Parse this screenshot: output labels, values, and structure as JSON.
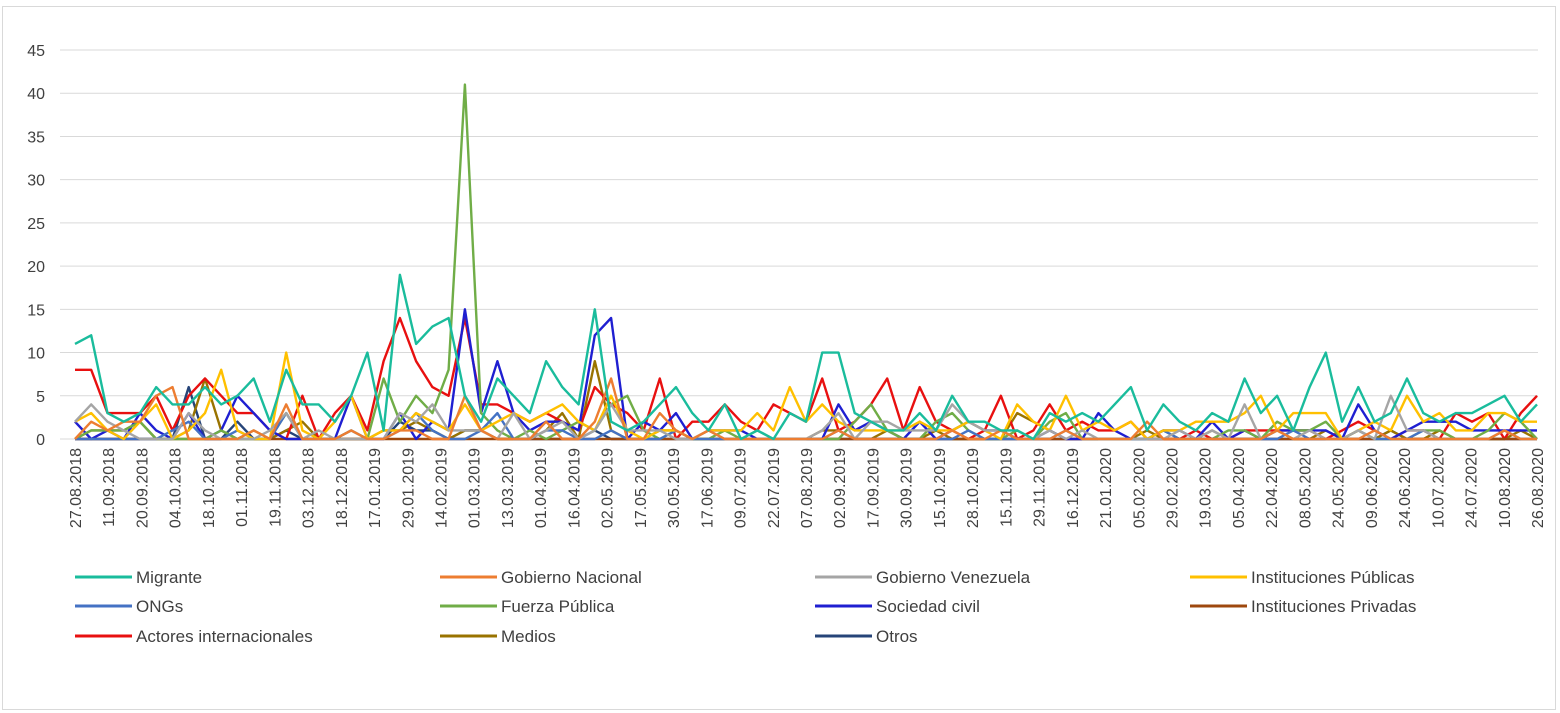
{
  "chart_data": {
    "type": "line",
    "title": "",
    "xlabel": "",
    "ylabel": "",
    "ylim": [
      0,
      45
    ],
    "yticks": [
      "0",
      "5",
      "10",
      "15",
      "20",
      "25",
      "30",
      "35",
      "40",
      "45"
    ],
    "grid": "horizontal",
    "legend_position": "bottom",
    "x_tick_labels": [
      "27.08.2018",
      "11.09.2018",
      "20.09.2018",
      "04.10.2018",
      "18.10.2018",
      "01.11.2018",
      "19.11.2018",
      "03.12.2018",
      "18.12.2018",
      "17.01.2019",
      "29.01.2019",
      "14.02.2019",
      "01.03.2019",
      "13.03.2019",
      "01.04.2019",
      "16.04.2019",
      "02.05.2019",
      "17.05.2019",
      "30.05.2019",
      "17.06.2019",
      "09.07.2019",
      "22.07.2019",
      "07.08.2019",
      "02.09.2019",
      "17.09.2019",
      "30.09.2019",
      "15.10.2019",
      "28.10.2019",
      "15.11.2019",
      "29.11.2019",
      "16.12.2019",
      "21.01.2020",
      "05.02.2020",
      "29.02.2020",
      "19.03.2020",
      "05.04.2020",
      "22.04.2020",
      "08.05.2020",
      "24.05.2020",
      "09.06.2020",
      "24.06.2020",
      "10.07.2020",
      "24.07.2020",
      "10.08.2020",
      "26.08.2020"
    ],
    "series": [
      {
        "name": "Migrante",
        "color": "#1ABC9C",
        "values": [
          11,
          12,
          3,
          2,
          3,
          6,
          4,
          4,
          6,
          4,
          5,
          7,
          2,
          8,
          4,
          4,
          2,
          5,
          10,
          1,
          19,
          11,
          13,
          14,
          5,
          2,
          7,
          5,
          3,
          9,
          6,
          4,
          15,
          2,
          1,
          2,
          4,
          6,
          3,
          1,
          4,
          0,
          1,
          0,
          3,
          2,
          10,
          10,
          3,
          2,
          1,
          1,
          3,
          1,
          5,
          2,
          2,
          1,
          1,
          0,
          3,
          2,
          3,
          2,
          4,
          6,
          1,
          4,
          2,
          1,
          3,
          2,
          7,
          3,
          5,
          1,
          6,
          10,
          2,
          6,
          2,
          3,
          7,
          3,
          2,
          3,
          3,
          4,
          5,
          2,
          4
        ]
      },
      {
        "name": "Gobierno Nacional",
        "color": "#ED7D31",
        "values": [
          0,
          2,
          1,
          2,
          2,
          5,
          6,
          0,
          0,
          0,
          0,
          1,
          0,
          4,
          0,
          0,
          0,
          1,
          0,
          0,
          1,
          1,
          0,
          0,
          5,
          1,
          0,
          0,
          0,
          2,
          0,
          0,
          2,
          7,
          0,
          0,
          3,
          1,
          0,
          1,
          0,
          0,
          0,
          0,
          0,
          0,
          0,
          1,
          0,
          0,
          0,
          0,
          0,
          0,
          1,
          0,
          0,
          1,
          0,
          0,
          0,
          1,
          0,
          0,
          0,
          0,
          2,
          0,
          0,
          0,
          0,
          0,
          0,
          0,
          1,
          0,
          0,
          0,
          0,
          0,
          1,
          0,
          0,
          0,
          0,
          0,
          0,
          0,
          1,
          0,
          0
        ]
      },
      {
        "name": "Gobierno Venezuela",
        "color": "#A5A5A5",
        "values": [
          2,
          4,
          2,
          1,
          0,
          0,
          0,
          3,
          1,
          0,
          0,
          0,
          1,
          3,
          0,
          1,
          0,
          0,
          0,
          0,
          3,
          2,
          4,
          1,
          1,
          1,
          0,
          3,
          0,
          1,
          2,
          0,
          1,
          4,
          1,
          1,
          1,
          0,
          0,
          1,
          0,
          0,
          0,
          0,
          0,
          0,
          1,
          3,
          0,
          2,
          2,
          1,
          1,
          1,
          4,
          2,
          1,
          1,
          0,
          0,
          1,
          0,
          1,
          0,
          0,
          0,
          0,
          0,
          1,
          0,
          1,
          0,
          4,
          0,
          1,
          0,
          1,
          0,
          0,
          1,
          0,
          5,
          1,
          1,
          0,
          0,
          0,
          0,
          1,
          0,
          0
        ]
      },
      {
        "name": "Instituciones Públicas",
        "color": "#FFC000",
        "values": [
          2,
          3,
          1,
          0,
          2,
          4,
          0,
          1,
          3,
          8,
          1,
          0,
          0,
          10,
          1,
          0,
          2,
          5,
          0,
          1,
          1,
          3,
          2,
          1,
          4,
          1,
          2,
          3,
          2,
          3,
          4,
          2,
          1,
          5,
          1,
          0,
          1,
          1,
          0,
          1,
          1,
          1,
          3,
          1,
          6,
          2,
          4,
          2,
          1,
          1,
          1,
          1,
          2,
          1,
          1,
          2,
          1,
          0,
          4,
          2,
          1,
          5,
          1,
          2,
          1,
          2,
          0,
          1,
          1,
          2,
          2,
          2,
          3,
          5,
          1,
          3,
          3,
          3,
          0,
          1,
          2,
          1,
          5,
          2,
          3,
          1,
          1,
          3,
          3,
          2,
          2
        ]
      },
      {
        "name": "ONGs",
        "color": "#4472C4",
        "values": [
          0,
          0,
          0,
          0,
          0,
          0,
          1,
          2,
          0,
          0,
          1,
          0,
          0,
          3,
          0,
          0,
          0,
          1,
          0,
          0,
          1,
          3,
          1,
          0,
          0,
          1,
          3,
          0,
          0,
          1,
          1,
          0,
          0,
          1,
          0,
          0,
          0,
          1,
          0,
          0,
          0,
          0,
          0,
          0,
          0,
          0,
          0,
          1,
          0,
          0,
          0,
          0,
          0,
          0,
          0,
          1,
          0,
          0,
          0,
          0,
          0,
          1,
          0,
          0,
          0,
          0,
          0,
          1,
          0,
          0,
          0,
          0,
          0,
          0,
          0,
          1,
          0,
          0,
          0,
          1,
          0,
          0,
          0,
          1,
          0,
          0,
          0,
          0,
          1,
          0,
          0
        ]
      },
      {
        "name": "Fuerza Pública",
        "color": "#70AD47",
        "values": [
          0,
          1,
          1,
          1,
          2,
          0,
          0,
          0,
          0,
          1,
          0,
          0,
          0,
          3,
          0,
          0,
          0,
          1,
          0,
          7,
          2,
          5,
          3,
          8,
          41,
          3,
          1,
          0,
          1,
          0,
          1,
          2,
          1,
          4,
          5,
          1,
          0,
          1,
          0,
          0,
          1,
          0,
          1,
          0,
          0,
          0,
          0,
          0,
          2,
          4,
          1,
          0,
          0,
          2,
          3,
          1,
          0,
          0,
          1,
          0,
          2,
          3,
          0,
          0,
          0,
          0,
          0,
          1,
          0,
          0,
          0,
          1,
          1,
          0,
          2,
          1,
          1,
          2,
          0,
          1,
          0,
          0,
          0,
          1,
          1,
          0,
          0,
          1,
          3,
          2,
          0
        ]
      },
      {
        "name": "Sociedad civil",
        "color": "#1F1FD1",
        "values": [
          2,
          0,
          1,
          0,
          3,
          1,
          0,
          3,
          0,
          1,
          5,
          3,
          1,
          0,
          0,
          0,
          0,
          5,
          0,
          0,
          3,
          0,
          2,
          1,
          15,
          3,
          9,
          3,
          1,
          2,
          2,
          1,
          12,
          14,
          0,
          2,
          1,
          3,
          0,
          1,
          1,
          1,
          0,
          0,
          0,
          0,
          0,
          4,
          1,
          2,
          1,
          0,
          2,
          0,
          1,
          2,
          1,
          1,
          0,
          0,
          1,
          0,
          0,
          3,
          1,
          0,
          0,
          1,
          1,
          0,
          2,
          0,
          1,
          0,
          1,
          1,
          1,
          1,
          0,
          4,
          1,
          0,
          1,
          2,
          2,
          2,
          1,
          1,
          1,
          1,
          1
        ]
      },
      {
        "name": "Instituciones Privadas",
        "color": "#9E480E",
        "values": [
          0,
          0,
          0,
          0,
          0,
          0,
          0,
          0,
          0,
          0,
          0,
          0,
          0,
          0,
          0,
          0,
          0,
          0,
          0,
          0,
          0,
          0,
          0,
          0,
          0,
          0,
          0,
          0,
          0,
          0,
          0,
          0,
          0,
          0,
          0,
          0,
          0,
          0,
          0,
          0,
          0,
          0,
          0,
          0,
          0,
          0,
          0,
          0,
          0,
          0,
          0,
          0,
          0,
          0,
          0,
          0,
          0,
          0,
          0,
          0,
          0,
          0,
          0,
          0,
          0,
          0,
          0,
          0,
          0,
          0,
          0,
          0,
          0,
          0,
          0,
          0,
          0,
          0,
          0,
          0,
          0,
          0,
          0,
          0,
          0,
          0,
          0,
          0,
          0,
          0,
          0
        ]
      },
      {
        "name": "Actores internacionales",
        "color": "#E81010",
        "values": [
          8,
          8,
          3,
          3,
          3,
          5,
          1,
          5,
          7,
          5,
          3,
          3,
          1,
          0,
          5,
          0,
          3,
          5,
          1,
          9,
          14,
          9,
          6,
          5,
          14,
          4,
          4,
          3,
          2,
          3,
          2,
          1,
          6,
          4,
          3,
          1,
          7,
          0,
          2,
          2,
          4,
          2,
          1,
          4,
          3,
          2,
          7,
          1,
          2,
          4,
          7,
          1,
          6,
          2,
          1,
          0,
          1,
          5,
          0,
          1,
          4,
          1,
          2,
          1,
          1,
          2,
          0,
          0,
          0,
          1,
          0,
          0,
          1,
          1,
          1,
          1,
          1,
          0,
          1,
          2,
          1,
          0,
          1,
          1,
          0,
          3,
          2,
          3,
          0,
          3,
          5
        ]
      },
      {
        "name": "Medios",
        "color": "#997300",
        "values": [
          0,
          1,
          1,
          1,
          2,
          0,
          0,
          1,
          7,
          1,
          0,
          1,
          0,
          1,
          2,
          0,
          0,
          0,
          0,
          1,
          1,
          2,
          1,
          0,
          1,
          1,
          0,
          0,
          0,
          1,
          3,
          0,
          9,
          1,
          0,
          0,
          1,
          1,
          0,
          0,
          0,
          0,
          0,
          0,
          0,
          0,
          1,
          1,
          0,
          0,
          1,
          0,
          0,
          1,
          0,
          0,
          0,
          0,
          3,
          2,
          1,
          0,
          0,
          0,
          0,
          0,
          1,
          0,
          0,
          0,
          1,
          0,
          0,
          0,
          1,
          0,
          0,
          1,
          0,
          1,
          0,
          1,
          0,
          0,
          1,
          0,
          0,
          0,
          0,
          1,
          0
        ]
      },
      {
        "name": "Otros",
        "color": "#264478",
        "values": [
          0,
          0,
          0,
          0,
          0,
          0,
          0,
          6,
          0,
          0,
          2,
          0,
          0,
          1,
          0,
          0,
          0,
          0,
          0,
          0,
          2,
          1,
          1,
          0,
          1,
          1,
          0,
          0,
          0,
          0,
          0,
          0,
          1,
          0,
          0,
          0,
          0,
          0,
          0,
          0,
          0,
          0,
          0,
          0,
          0,
          0,
          0,
          0,
          0,
          0,
          0,
          0,
          0,
          0,
          0,
          0,
          0,
          0,
          0,
          0,
          0,
          0,
          0,
          0,
          0,
          0,
          0,
          0,
          0,
          0,
          0,
          0,
          0,
          0,
          0,
          0,
          0,
          0,
          0,
          0,
          0,
          1,
          0,
          0,
          0,
          0,
          0,
          0,
          0,
          0,
          0
        ]
      }
    ]
  }
}
